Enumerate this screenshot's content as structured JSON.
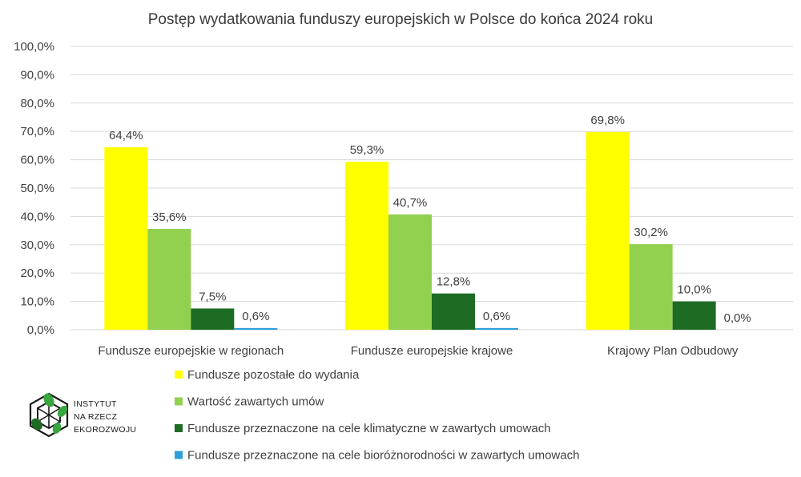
{
  "chart_data": {
    "type": "bar",
    "title": "Postęp wydatkowania funduszy europejskich w Polsce do końca 2024 roku",
    "categories": [
      "Fundusze europejskie w regionach",
      "Fundusze europejskie krajowe",
      "Krajowy Plan Odbudowy"
    ],
    "series": [
      {
        "name": "Fundusze pozostałe do wydania",
        "color": "#ffff00",
        "values": [
          64.4,
          59.3,
          69.8
        ],
        "labels": [
          "64,4%",
          "59,3%",
          "69,8%"
        ]
      },
      {
        "name": "Wartość zawartych umów",
        "color": "#92d050",
        "values": [
          35.6,
          40.7,
          30.2
        ],
        "labels": [
          "35,6%",
          "40,7%",
          "30,2%"
        ]
      },
      {
        "name": "Fundusze przeznaczone na cele klimatyczne w zawartych umowach",
        "color": "#1e6b24",
        "values": [
          7.5,
          12.8,
          10.0
        ],
        "labels": [
          "7,5%",
          "12,8%",
          "10,0%"
        ]
      },
      {
        "name": "Fundusze przeznaczone na cele bioróżnorodności w zawartych umowach",
        "color": "#2e9fd8",
        "values": [
          0.6,
          0.6,
          0.0
        ],
        "labels": [
          "0,6%",
          "0,6%",
          "0,0%"
        ]
      }
    ],
    "ylim": [
      0,
      100
    ],
    "yticks": [
      0,
      10,
      20,
      30,
      40,
      50,
      60,
      70,
      80,
      90,
      100
    ],
    "ytick_labels": [
      "0,0%",
      "10,0%",
      "20,0%",
      "30,0%",
      "40,0%",
      "50,0%",
      "60,0%",
      "70,0%",
      "80,0%",
      "90,0%",
      "100,0%"
    ],
    "grid": true,
    "legend_position": "bottom"
  },
  "logo": {
    "line1": "INSTYTUT",
    "line2": "NA RZECZ",
    "line3": "EKOROZWOJU"
  }
}
